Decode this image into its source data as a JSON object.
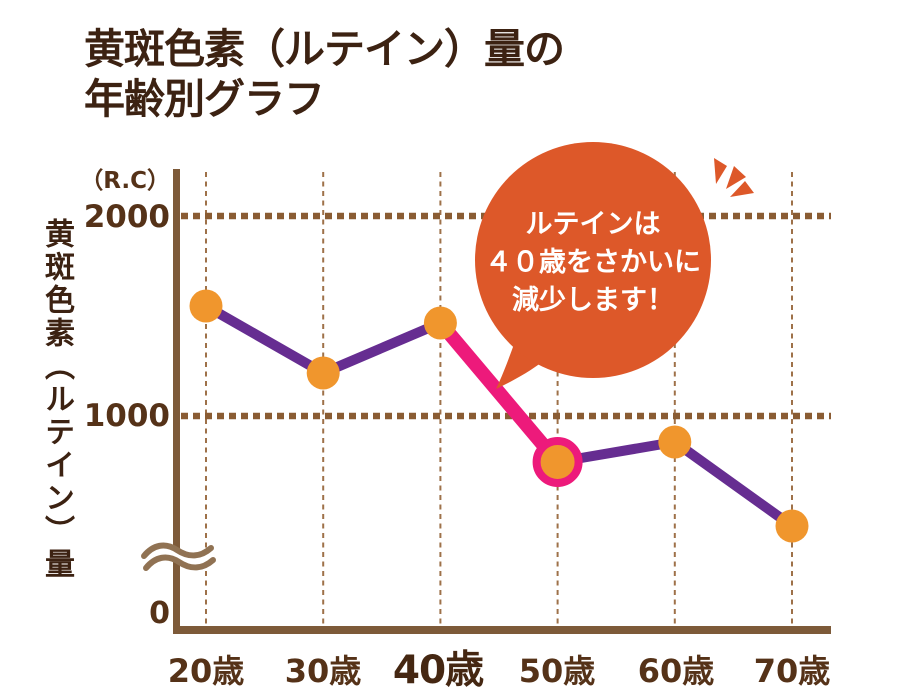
{
  "page": {
    "background": "#ffffff"
  },
  "title": {
    "line1": "黄斑色素（ルテイン）量の",
    "line2": "年齢別グラフ"
  },
  "y_axis": {
    "unit": "（R.C）",
    "title": "黄斑色素（ルテイン）量",
    "ticks": [
      "2000",
      "1000",
      "0"
    ]
  },
  "x_axis": {
    "labels": [
      "20歳",
      "30歳",
      "40歳",
      "50歳",
      "60歳",
      "70歳"
    ],
    "emphasized_label": "40歳"
  },
  "annotation": {
    "line1": "ルテインは",
    "line2": "４０歳をさかいに",
    "line3": "減少します！"
  },
  "colors": {
    "title_text": "#3c2212",
    "label_text": "#553218",
    "axis": "#7d5a39",
    "grid_vertical": "#9e7149",
    "grid_horizontal": "#8a5c33",
    "line": "#662d91",
    "point": "#f0962d",
    "highlight": "#ed1a7b",
    "bubble": "#dd5829",
    "bubble_text": "#ffffff",
    "axis_break": "#907253"
  },
  "chart_data": {
    "type": "line",
    "title": "黄斑色素（ルテイン）量の年齢別グラフ",
    "ylabel": "黄斑色素（ルテイン）量",
    "unit": "R.C",
    "categories": [
      "20歳",
      "30歳",
      "40歳",
      "50歳",
      "60歳",
      "70歳"
    ],
    "values": [
      1550,
      1215,
      1465,
      770,
      870,
      450
    ],
    "ylim": [
      0,
      2100
    ],
    "yticks": [
      0,
      1000,
      2000
    ],
    "gridlines_y": [
      2000,
      1000
    ],
    "axis_break": true,
    "grid": "dotted",
    "highlight_segment": 2,
    "highlight_point": 3,
    "annotation_text": "ルテインは４０歳をさかいに減少します！"
  }
}
